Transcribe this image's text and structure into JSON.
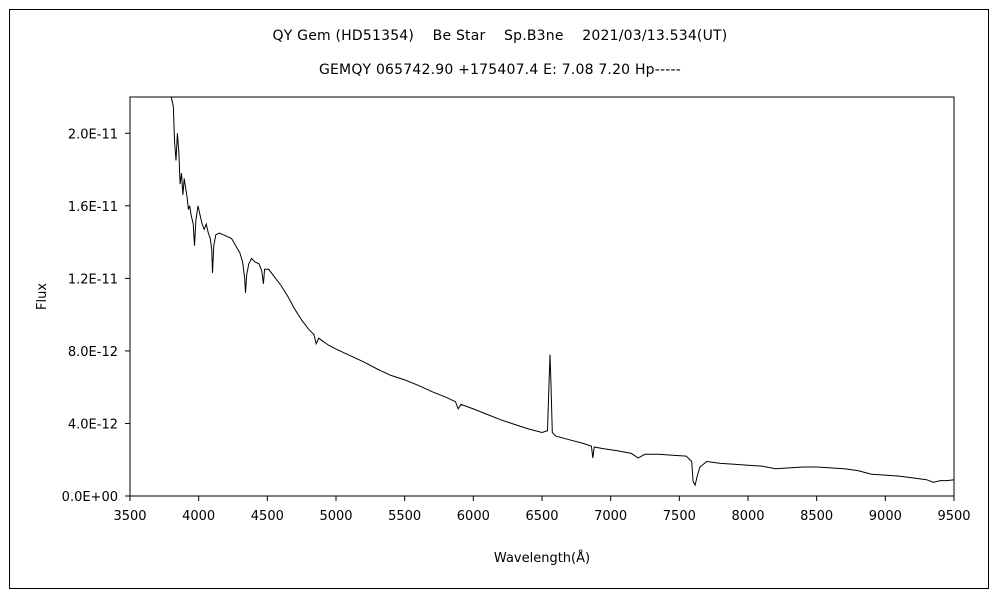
{
  "title_line1": "QY Gem (HD51354)    Be Star    Sp.B3ne    2021/03/13.534(UT)",
  "title_line2": "GEMQY 065742.90 +175407.4 E: 7.08 7.20 Hp-----",
  "chart_data": {
    "type": "line",
    "xlabel": "Wavelength(Å)",
    "ylabel": "Flux",
    "xlim": [
      3500,
      9500
    ],
    "ylim": [
      0,
      2.2e-11
    ],
    "x_ticks": [
      3500,
      4000,
      4500,
      5000,
      5500,
      6000,
      6500,
      7000,
      7500,
      8000,
      8500,
      9000,
      9500
    ],
    "x_tick_labels": [
      "3500",
      "4000",
      "4500",
      "5000",
      "5500",
      "6000",
      "6500",
      "7000",
      "7500",
      "8000",
      "8500",
      "9000",
      "9500"
    ],
    "y_ticks": [
      0,
      4e-12,
      8e-12,
      1.2e-11,
      1.6e-11,
      2e-11
    ],
    "y_tick_labels": [
      "0.0E+00",
      "4.0E-12",
      "8.0E-12",
      "1.2E-11",
      "1.6E-11",
      "2.0E-11"
    ],
    "grid": false,
    "series": [
      {
        "points": [
          [
            3800,
            2.2e-11
          ],
          [
            3815,
            2.15e-11
          ],
          [
            3825,
            1.95e-11
          ],
          [
            3835,
            1.85e-11
          ],
          [
            3845,
            2e-11
          ],
          [
            3855,
            1.9e-11
          ],
          [
            3865,
            1.72e-11
          ],
          [
            3875,
            1.78e-11
          ],
          [
            3885,
            1.66e-11
          ],
          [
            3895,
            1.75e-11
          ],
          [
            3905,
            1.7e-11
          ],
          [
            3915,
            1.65e-11
          ],
          [
            3925,
            1.58e-11
          ],
          [
            3935,
            1.6e-11
          ],
          [
            3945,
            1.55e-11
          ],
          [
            3960,
            1.5e-11
          ],
          [
            3970,
            1.38e-11
          ],
          [
            3980,
            1.52e-11
          ],
          [
            3995,
            1.6e-11
          ],
          [
            4010,
            1.55e-11
          ],
          [
            4025,
            1.5e-11
          ],
          [
            4040,
            1.47e-11
          ],
          [
            4055,
            1.5e-11
          ],
          [
            4070,
            1.45e-11
          ],
          [
            4085,
            1.42e-11
          ],
          [
            4095,
            1.36e-11
          ],
          [
            4101,
            1.23e-11
          ],
          [
            4110,
            1.38e-11
          ],
          [
            4125,
            1.44e-11
          ],
          [
            4150,
            1.45e-11
          ],
          [
            4180,
            1.44e-11
          ],
          [
            4210,
            1.43e-11
          ],
          [
            4240,
            1.42e-11
          ],
          [
            4270,
            1.38e-11
          ],
          [
            4300,
            1.34e-11
          ],
          [
            4320,
            1.29e-11
          ],
          [
            4335,
            1.2e-11
          ],
          [
            4341,
            1.12e-11
          ],
          [
            4350,
            1.22e-11
          ],
          [
            4365,
            1.28e-11
          ],
          [
            4385,
            1.31e-11
          ],
          [
            4410,
            1.29e-11
          ],
          [
            4440,
            1.28e-11
          ],
          [
            4460,
            1.24e-11
          ],
          [
            4471,
            1.17e-11
          ],
          [
            4480,
            1.25e-11
          ],
          [
            4510,
            1.25e-11
          ],
          [
            4550,
            1.21e-11
          ],
          [
            4600,
            1.16e-11
          ],
          [
            4650,
            1.1e-11
          ],
          [
            4700,
            1.03e-11
          ],
          [
            4750,
            9.7e-12
          ],
          [
            4800,
            9.2e-12
          ],
          [
            4840,
            8.9e-12
          ],
          [
            4856,
            8.4e-12
          ],
          [
            4875,
            8.7e-12
          ],
          [
            4910,
            8.5e-12
          ],
          [
            4950,
            8.3e-12
          ],
          [
            5000,
            8.1e-12
          ],
          [
            5100,
            7.75e-12
          ],
          [
            5200,
            7.4e-12
          ],
          [
            5300,
            7e-12
          ],
          [
            5400,
            6.65e-12
          ],
          [
            5500,
            6.4e-12
          ],
          [
            5600,
            6.1e-12
          ],
          [
            5700,
            5.75e-12
          ],
          [
            5800,
            5.45e-12
          ],
          [
            5870,
            5.2e-12
          ],
          [
            5890,
            4.8e-12
          ],
          [
            5910,
            5.05e-12
          ],
          [
            6000,
            4.8e-12
          ],
          [
            6100,
            4.5e-12
          ],
          [
            6200,
            4.2e-12
          ],
          [
            6300,
            3.95e-12
          ],
          [
            6400,
            3.7e-12
          ],
          [
            6500,
            3.5e-12
          ],
          [
            6540,
            3.6e-12
          ],
          [
            6550,
            6e-12
          ],
          [
            6558,
            7.8e-12
          ],
          [
            6565,
            6.3e-12
          ],
          [
            6575,
            3.5e-12
          ],
          [
            6600,
            3.3e-12
          ],
          [
            6700,
            3.1e-12
          ],
          [
            6800,
            2.9e-12
          ],
          [
            6860,
            2.75e-12
          ],
          [
            6870,
            2.1e-12
          ],
          [
            6880,
            2.7e-12
          ],
          [
            6950,
            2.6e-12
          ],
          [
            7050,
            2.5e-12
          ],
          [
            7150,
            2.35e-12
          ],
          [
            7200,
            2.1e-12
          ],
          [
            7250,
            2.3e-12
          ],
          [
            7350,
            2.3e-12
          ],
          [
            7450,
            2.25e-12
          ],
          [
            7550,
            2.2e-12
          ],
          [
            7590,
            1.9e-12
          ],
          [
            7600,
            8e-13
          ],
          [
            7615,
            6e-13
          ],
          [
            7630,
            1.1e-12
          ],
          [
            7650,
            1.6e-12
          ],
          [
            7700,
            1.9e-12
          ],
          [
            7800,
            1.8e-12
          ],
          [
            7900,
            1.75e-12
          ],
          [
            8000,
            1.7e-12
          ],
          [
            8100,
            1.65e-12
          ],
          [
            8200,
            1.5e-12
          ],
          [
            8300,
            1.55e-12
          ],
          [
            8400,
            1.6e-12
          ],
          [
            8500,
            1.6e-12
          ],
          [
            8600,
            1.55e-12
          ],
          [
            8700,
            1.5e-12
          ],
          [
            8800,
            1.4e-12
          ],
          [
            8900,
            1.2e-12
          ],
          [
            9000,
            1.15e-12
          ],
          [
            9100,
            1.1e-12
          ],
          [
            9200,
            1e-12
          ],
          [
            9300,
            9e-13
          ],
          [
            9350,
            7.5e-13
          ],
          [
            9400,
            8.5e-13
          ],
          [
            9450,
            8.5e-13
          ],
          [
            9500,
            9e-13
          ]
        ]
      }
    ]
  }
}
